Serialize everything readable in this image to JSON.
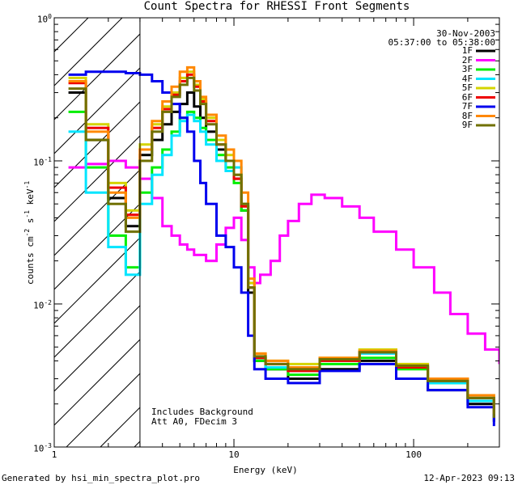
{
  "chart_data": {
    "type": "line",
    "title": "Count Spectra for RHESSI Front Segments",
    "xlabel": "Energy (keV)",
    "ylabel": "counts cm^-2 s^-1 keV^-1",
    "x_scale": "log",
    "y_scale": "log",
    "xlim": [
      1,
      300
    ],
    "ylim": [
      0.001,
      1
    ],
    "x_tick_labels": [
      "1",
      "10",
      "100"
    ],
    "y_tick_labels": [
      {
        "value": 1,
        "mantissa": "10",
        "exp": "0"
      },
      {
        "value": 0.1,
        "mantissa": "10",
        "exp": "-1"
      },
      {
        "value": 0.01,
        "mantissa": "10",
        "exp": "-2"
      },
      {
        "value": 0.001,
        "mantissa": "10",
        "exp": "-3"
      }
    ],
    "hatched_region_keV": [
      1,
      3
    ],
    "legend": {
      "date": "30-Nov-2003",
      "time_range": "05:37:00 to 05:38:00",
      "position": "top-right"
    },
    "annotation_lines": [
      "Includes Background",
      "Att A0, FDecim 3"
    ],
    "series": [
      {
        "name": "1F",
        "color": "#000000",
        "x": [
          1.2,
          1.5,
          2.0,
          2.5,
          3.0,
          3.5,
          4.0,
          4.5,
          5.0,
          5.5,
          6.0,
          6.5,
          7.0,
          8.0,
          9.0,
          10.0,
          11.0,
          12.0,
          13.0,
          15.0,
          20.0,
          30.0,
          50.0,
          80.0,
          120.0,
          200.0,
          280.0
        ],
        "y": [
          0.3,
          0.14,
          0.055,
          0.035,
          0.11,
          0.14,
          0.18,
          0.22,
          0.25,
          0.3,
          0.24,
          0.2,
          0.16,
          0.12,
          0.1,
          0.075,
          0.045,
          0.012,
          0.004,
          0.0035,
          0.003,
          0.0035,
          0.004,
          0.003,
          0.0025,
          0.002,
          0.0015
        ]
      },
      {
        "name": "2F",
        "color": "#ff00ff",
        "x": [
          1.2,
          1.5,
          2.0,
          2.5,
          3.0,
          3.5,
          4.0,
          4.5,
          5.0,
          5.5,
          6.0,
          7.0,
          8.0,
          9.0,
          10.0,
          11.0,
          12.0,
          13.0,
          14.0,
          16.0,
          18.0,
          20.0,
          23.0,
          27.0,
          32.0,
          40.0,
          50.0,
          60.0,
          80.0,
          100.0,
          130.0,
          160.0,
          200.0,
          250.0,
          300.0
        ],
        "y": [
          0.09,
          0.095,
          0.1,
          0.09,
          0.075,
          0.055,
          0.035,
          0.03,
          0.026,
          0.024,
          0.022,
          0.02,
          0.026,
          0.034,
          0.04,
          0.028,
          0.018,
          0.014,
          0.016,
          0.02,
          0.03,
          0.038,
          0.05,
          0.058,
          0.055,
          0.048,
          0.04,
          0.032,
          0.024,
          0.018,
          0.012,
          0.0085,
          0.0062,
          0.0048,
          0.0038
        ]
      },
      {
        "name": "3F",
        "color": "#00ee00",
        "x": [
          1.2,
          1.5,
          2.0,
          2.5,
          3.0,
          3.5,
          4.0,
          4.5,
          5.0,
          5.5,
          6.0,
          6.5,
          7.0,
          8.0,
          9.0,
          10.0,
          11.0,
          12.0,
          13.0,
          15.0,
          20.0,
          30.0,
          50.0,
          80.0,
          120.0,
          200.0,
          280.0
        ],
        "y": [
          0.22,
          0.09,
          0.03,
          0.018,
          0.06,
          0.09,
          0.12,
          0.16,
          0.2,
          0.22,
          0.2,
          0.17,
          0.14,
          0.11,
          0.09,
          0.07,
          0.045,
          0.013,
          0.004,
          0.0035,
          0.0032,
          0.0038,
          0.0042,
          0.0035,
          0.0028,
          0.0022,
          0.0016
        ]
      },
      {
        "name": "4F",
        "color": "#00e5ff",
        "x": [
          1.2,
          1.5,
          2.0,
          2.5,
          3.0,
          3.5,
          4.0,
          4.5,
          5.0,
          5.5,
          6.0,
          6.5,
          7.0,
          8.0,
          9.0,
          10.0,
          11.0,
          12.0,
          13.0,
          15.0,
          20.0,
          30.0,
          50.0,
          80.0,
          120.0,
          200.0,
          280.0
        ],
        "y": [
          0.16,
          0.06,
          0.025,
          0.016,
          0.05,
          0.08,
          0.11,
          0.15,
          0.19,
          0.21,
          0.19,
          0.16,
          0.13,
          0.1,
          0.085,
          0.09,
          0.05,
          0.014,
          0.0042,
          0.0036,
          0.0034,
          0.004,
          0.0045,
          0.0036,
          0.0028,
          0.0021,
          0.0016
        ]
      },
      {
        "name": "5F",
        "color": "#d4d400",
        "x": [
          1.2,
          1.5,
          2.0,
          2.5,
          3.0,
          3.5,
          4.0,
          4.5,
          5.0,
          5.5,
          6.0,
          6.5,
          7.0,
          8.0,
          9.0,
          10.0,
          11.0,
          12.0,
          13.0,
          15.0,
          20.0,
          30.0,
          50.0,
          80.0,
          120.0,
          200.0,
          280.0
        ],
        "y": [
          0.38,
          0.18,
          0.07,
          0.045,
          0.13,
          0.18,
          0.24,
          0.3,
          0.38,
          0.42,
          0.34,
          0.27,
          0.2,
          0.14,
          0.11,
          0.08,
          0.05,
          0.014,
          0.0045,
          0.004,
          0.0038,
          0.0042,
          0.0048,
          0.0038,
          0.003,
          0.0023,
          0.0017
        ]
      },
      {
        "name": "6F",
        "color": "#ee0000",
        "x": [
          1.2,
          1.5,
          2.0,
          2.5,
          3.0,
          3.5,
          4.0,
          4.5,
          5.0,
          5.5,
          6.0,
          6.5,
          7.0,
          8.0,
          9.0,
          10.0,
          11.0,
          12.0,
          13.0,
          15.0,
          20.0,
          30.0,
          50.0,
          80.0,
          120.0,
          200.0,
          280.0
        ],
        "y": [
          0.35,
          0.17,
          0.065,
          0.042,
          0.12,
          0.17,
          0.23,
          0.29,
          0.36,
          0.4,
          0.33,
          0.26,
          0.19,
          0.13,
          0.1,
          0.075,
          0.048,
          0.013,
          0.0042,
          0.0038,
          0.0034,
          0.004,
          0.0046,
          0.0036,
          0.0029,
          0.0022,
          0.0016
        ]
      },
      {
        "name": "7F",
        "color": "#0000ee",
        "x": [
          1.2,
          1.5,
          2.0,
          2.5,
          3.0,
          3.5,
          4.0,
          4.5,
          5.0,
          5.5,
          6.0,
          6.5,
          7.0,
          8.0,
          9.0,
          10.0,
          11.0,
          12.0,
          13.0,
          15.0,
          20.0,
          30.0,
          50.0,
          80.0,
          120.0,
          200.0,
          280.0
        ],
        "y": [
          0.4,
          0.42,
          0.42,
          0.41,
          0.4,
          0.36,
          0.3,
          0.25,
          0.2,
          0.16,
          0.1,
          0.07,
          0.05,
          0.03,
          0.025,
          0.018,
          0.012,
          0.006,
          0.0035,
          0.003,
          0.0028,
          0.0034,
          0.0038,
          0.003,
          0.0025,
          0.0019,
          0.0014
        ]
      },
      {
        "name": "8F",
        "color": "#ff8800",
        "x": [
          1.2,
          1.5,
          2.0,
          2.5,
          3.0,
          3.5,
          4.0,
          4.5,
          5.0,
          5.5,
          6.0,
          6.5,
          7.0,
          8.0,
          9.0,
          10.0,
          11.0,
          12.0,
          13.0,
          15.0,
          20.0,
          30.0,
          50.0,
          80.0,
          120.0,
          200.0,
          280.0
        ],
        "y": [
          0.36,
          0.16,
          0.06,
          0.04,
          0.12,
          0.19,
          0.26,
          0.33,
          0.42,
          0.45,
          0.36,
          0.28,
          0.21,
          0.15,
          0.12,
          0.1,
          0.06,
          0.015,
          0.0045,
          0.004,
          0.0036,
          0.0042,
          0.0047,
          0.0037,
          0.003,
          0.0023,
          0.0017
        ]
      },
      {
        "name": "9F",
        "color": "#707000",
        "x": [
          1.2,
          1.5,
          2.0,
          2.5,
          3.0,
          3.5,
          4.0,
          4.5,
          5.0,
          5.5,
          6.0,
          6.5,
          7.0,
          8.0,
          9.0,
          10.0,
          11.0,
          12.0,
          13.0,
          15.0,
          20.0,
          30.0,
          50.0,
          80.0,
          120.0,
          200.0,
          280.0
        ],
        "y": [
          0.32,
          0.14,
          0.05,
          0.032,
          0.1,
          0.16,
          0.22,
          0.28,
          0.34,
          0.38,
          0.31,
          0.25,
          0.18,
          0.13,
          0.1,
          0.08,
          0.05,
          0.013,
          0.0043,
          0.0038,
          0.0035,
          0.0041,
          0.0046,
          0.0037,
          0.0029,
          0.0022,
          0.0016
        ]
      }
    ]
  },
  "footer": {
    "generated_by": "Generated by hsi_min_spectra_plot.pro",
    "timestamp": "12-Apr-2023 09:13"
  }
}
